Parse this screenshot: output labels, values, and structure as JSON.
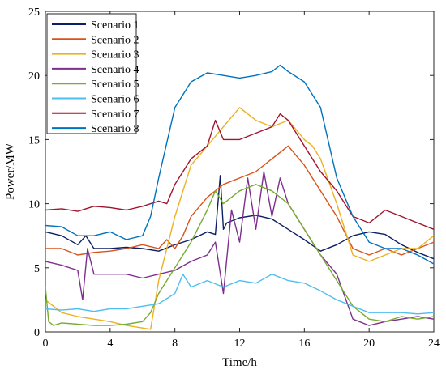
{
  "chart_data": {
    "type": "line",
    "xlabel": "Time/h",
    "ylabel": "Power/MW",
    "xlim": [
      0,
      24
    ],
    "ylim": [
      0,
      25
    ],
    "xticks": [
      0,
      4,
      8,
      12,
      16,
      20,
      24
    ],
    "yticks": [
      0,
      5,
      10,
      15,
      20,
      25
    ],
    "grid": false,
    "legend_position": "top-left",
    "series": [
      {
        "name": "Scenario 1",
        "color": "#0b1f66",
        "x": [
          0,
          1,
          2,
          2.5,
          3,
          4,
          5,
          6,
          7,
          8,
          9,
          10,
          10.5,
          10.8,
          11,
          11.2,
          12,
          13,
          14,
          15,
          16,
          17,
          18,
          19,
          20,
          21,
          22,
          23,
          24
        ],
        "y": [
          7.8,
          7.5,
          6.8,
          7.5,
          6.5,
          6.5,
          6.6,
          6.5,
          6.3,
          6.8,
          7.2,
          7.8,
          7.6,
          12.2,
          8.0,
          8.5,
          8.9,
          9.1,
          8.8,
          8.0,
          7.2,
          6.3,
          6.8,
          7.5,
          7.8,
          7.6,
          6.8,
          6.2,
          5.7
        ]
      },
      {
        "name": "Scenario 2",
        "color": "#d95319",
        "x": [
          0,
          1,
          2,
          3,
          4,
          5,
          6,
          7,
          7.5,
          8,
          8.5,
          9,
          10,
          11,
          12,
          13,
          14,
          15,
          16,
          17,
          18,
          19,
          20,
          21,
          22,
          23,
          24
        ],
        "y": [
          6.5,
          6.5,
          6.0,
          6.2,
          6.3,
          6.5,
          6.8,
          6.5,
          7.2,
          6.5,
          7.5,
          9.0,
          10.5,
          11.5,
          12.0,
          12.5,
          13.5,
          14.5,
          13.0,
          11.0,
          9.0,
          6.5,
          6.0,
          6.5,
          6.0,
          6.5,
          7.0
        ]
      },
      {
        "name": "Scenario 3",
        "color": "#edb120",
        "x": [
          0,
          0.5,
          1,
          2,
          3,
          4,
          5,
          6,
          6.5,
          7,
          8,
          9,
          10,
          11,
          12,
          13,
          14,
          15,
          16,
          16.5,
          17,
          18,
          19,
          20,
          21,
          22,
          23,
          24
        ],
        "y": [
          2.5,
          2.0,
          1.5,
          1.2,
          1.0,
          0.8,
          0.5,
          0.3,
          0.2,
          4.0,
          9.0,
          13.0,
          14.5,
          16.0,
          17.5,
          16.5,
          16.0,
          16.5,
          15.0,
          14.5,
          13.5,
          10.0,
          6.0,
          5.5,
          6.0,
          6.5,
          6.5,
          7.5
        ]
      },
      {
        "name": "Scenario 4",
        "color": "#7e2f8e",
        "x": [
          0,
          1,
          2,
          2.3,
          2.6,
          3,
          4,
          5,
          6,
          7,
          8,
          9,
          10,
          10.5,
          11,
          11.5,
          12,
          12.5,
          13,
          13.5,
          14,
          14.5,
          15,
          16,
          17,
          18,
          19,
          20,
          21,
          22,
          23,
          24
        ],
        "y": [
          5.5,
          5.2,
          4.8,
          2.5,
          6.5,
          4.5,
          4.5,
          4.5,
          4.2,
          4.5,
          4.8,
          5.5,
          6.0,
          7.0,
          3.0,
          9.5,
          7.0,
          12.0,
          8.0,
          12.5,
          9.0,
          12.0,
          10.0,
          8.0,
          6.0,
          4.5,
          1.0,
          0.5,
          0.8,
          1.0,
          1.2,
          1.0
        ]
      },
      {
        "name": "Scenario 5",
        "color": "#77ac30",
        "x": [
          0,
          0.2,
          0.5,
          1,
          2,
          3,
          4,
          5,
          6,
          6.5,
          7,
          8,
          9,
          10,
          10.5,
          11,
          12,
          13,
          14,
          15,
          16,
          17,
          18,
          19,
          20,
          21,
          22,
          23,
          24
        ],
        "y": [
          3.5,
          0.8,
          0.5,
          0.7,
          0.6,
          0.5,
          0.5,
          0.6,
          0.8,
          1.5,
          3.0,
          5.0,
          7.0,
          9.5,
          11.0,
          10.0,
          11.0,
          11.5,
          11.0,
          10.0,
          8.0,
          6.0,
          4.0,
          2.0,
          1.0,
          0.8,
          1.2,
          1.0,
          1.2
        ]
      },
      {
        "name": "Scenario 6",
        "color": "#4dbeee",
        "x": [
          0,
          1,
          2,
          3,
          4,
          5,
          6,
          7,
          8,
          8.5,
          9,
          10,
          11,
          12,
          13,
          14,
          15,
          16,
          17,
          18,
          19,
          20,
          21,
          22,
          23,
          24
        ],
        "y": [
          1.8,
          1.7,
          1.8,
          1.6,
          1.8,
          1.8,
          2.0,
          2.2,
          3.0,
          4.5,
          3.5,
          4.0,
          3.5,
          4.0,
          3.8,
          4.5,
          4.0,
          3.8,
          3.2,
          2.5,
          2.0,
          1.5,
          1.5,
          1.5,
          1.4,
          1.5
        ]
      },
      {
        "name": "Scenario 7",
        "color": "#a2142f",
        "x": [
          0,
          1,
          2,
          3,
          4,
          5,
          6,
          7,
          7.5,
          8,
          9,
          10,
          10.5,
          11,
          12,
          13,
          14,
          14.5,
          15,
          16,
          16.5,
          17,
          18,
          19,
          20,
          21,
          22,
          23,
          24
        ],
        "y": [
          9.5,
          9.6,
          9.4,
          9.8,
          9.7,
          9.5,
          9.8,
          10.2,
          10.0,
          11.5,
          13.5,
          14.5,
          16.5,
          15.0,
          15.0,
          15.5,
          16.0,
          17.0,
          16.5,
          14.5,
          13.5,
          12.5,
          11.0,
          9.0,
          8.5,
          9.5,
          9.0,
          8.5,
          8.0
        ]
      },
      {
        "name": "Scenario 8",
        "color": "#0072bd",
        "x": [
          0,
          1,
          2,
          3,
          4,
          5,
          6,
          6.5,
          7,
          8,
          9,
          10,
          11,
          12,
          13,
          14,
          14.5,
          15,
          16,
          17,
          18,
          19,
          20,
          21,
          22,
          23,
          24
        ],
        "y": [
          8.3,
          8.2,
          7.5,
          7.5,
          7.8,
          7.2,
          7.5,
          9.0,
          12.0,
          17.5,
          19.5,
          20.2,
          20.0,
          19.8,
          20.0,
          20.3,
          20.8,
          20.3,
          19.5,
          17.5,
          12.0,
          9.0,
          7.0,
          6.5,
          6.5,
          6.0,
          5.3
        ]
      }
    ]
  }
}
